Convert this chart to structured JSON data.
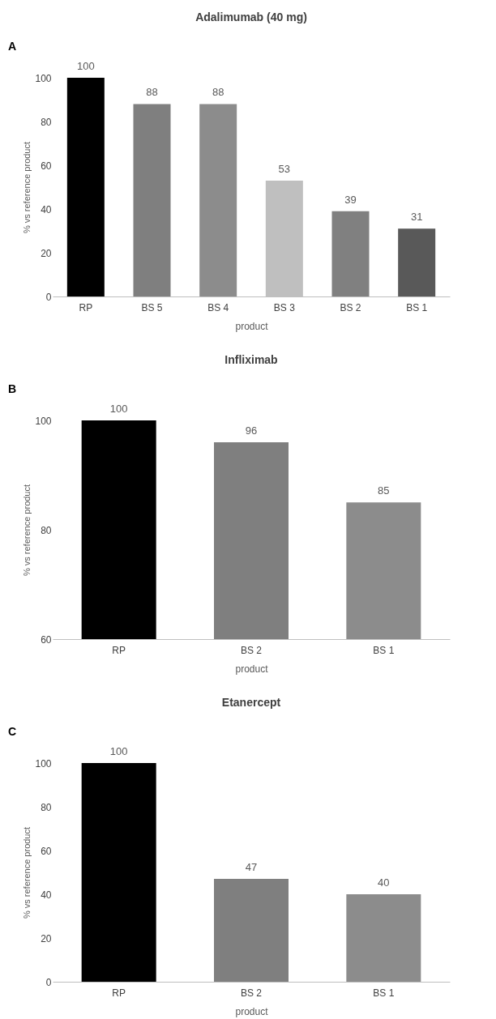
{
  "chart_data": [
    {
      "type": "bar",
      "title": "Adalimumab (40 mg)",
      "xlabel": "product",
      "ylabel": "% vs reference product",
      "annotations": [
        "A"
      ],
      "categories": [
        "RP",
        "BS 5",
        "BS 4",
        "BS 3",
        "BS 2",
        "BS 1"
      ],
      "values": [
        100,
        88,
        88,
        53,
        39,
        31
      ],
      "colors": [
        "#000000",
        "#7f7f7f",
        "#8c8c8c",
        "#bfbfbf",
        "#808080",
        "#595959"
      ],
      "ylim": [
        0,
        100
      ],
      "yticks": [
        0,
        20,
        40,
        60,
        80,
        100
      ],
      "data_labels": true,
      "grid": false,
      "legend": false
    },
    {
      "type": "bar",
      "title": "Infliximab",
      "xlabel": "product",
      "ylabel": "% vs reference product",
      "annotations": [
        "B"
      ],
      "categories": [
        "RP",
        "BS 2",
        "BS 1"
      ],
      "values": [
        100,
        96,
        85
      ],
      "colors": [
        "#000000",
        "#7f7f7f",
        "#8c8c8c"
      ],
      "ylim": [
        60,
        100
      ],
      "yticks": [
        60,
        80,
        100
      ],
      "data_labels": true,
      "grid": false,
      "legend": false
    },
    {
      "type": "bar",
      "title": "Etanercept",
      "xlabel": "product",
      "ylabel": "% vs reference product",
      "annotations": [
        "C"
      ],
      "categories": [
        "RP",
        "BS 2",
        "BS 1"
      ],
      "values": [
        100,
        47,
        40
      ],
      "colors": [
        "#000000",
        "#7f7f7f",
        "#8c8c8c"
      ],
      "ylim": [
        0,
        100
      ],
      "yticks": [
        0,
        20,
        40,
        60,
        80,
        100
      ],
      "data_labels": true,
      "grid": false,
      "legend": false
    }
  ]
}
